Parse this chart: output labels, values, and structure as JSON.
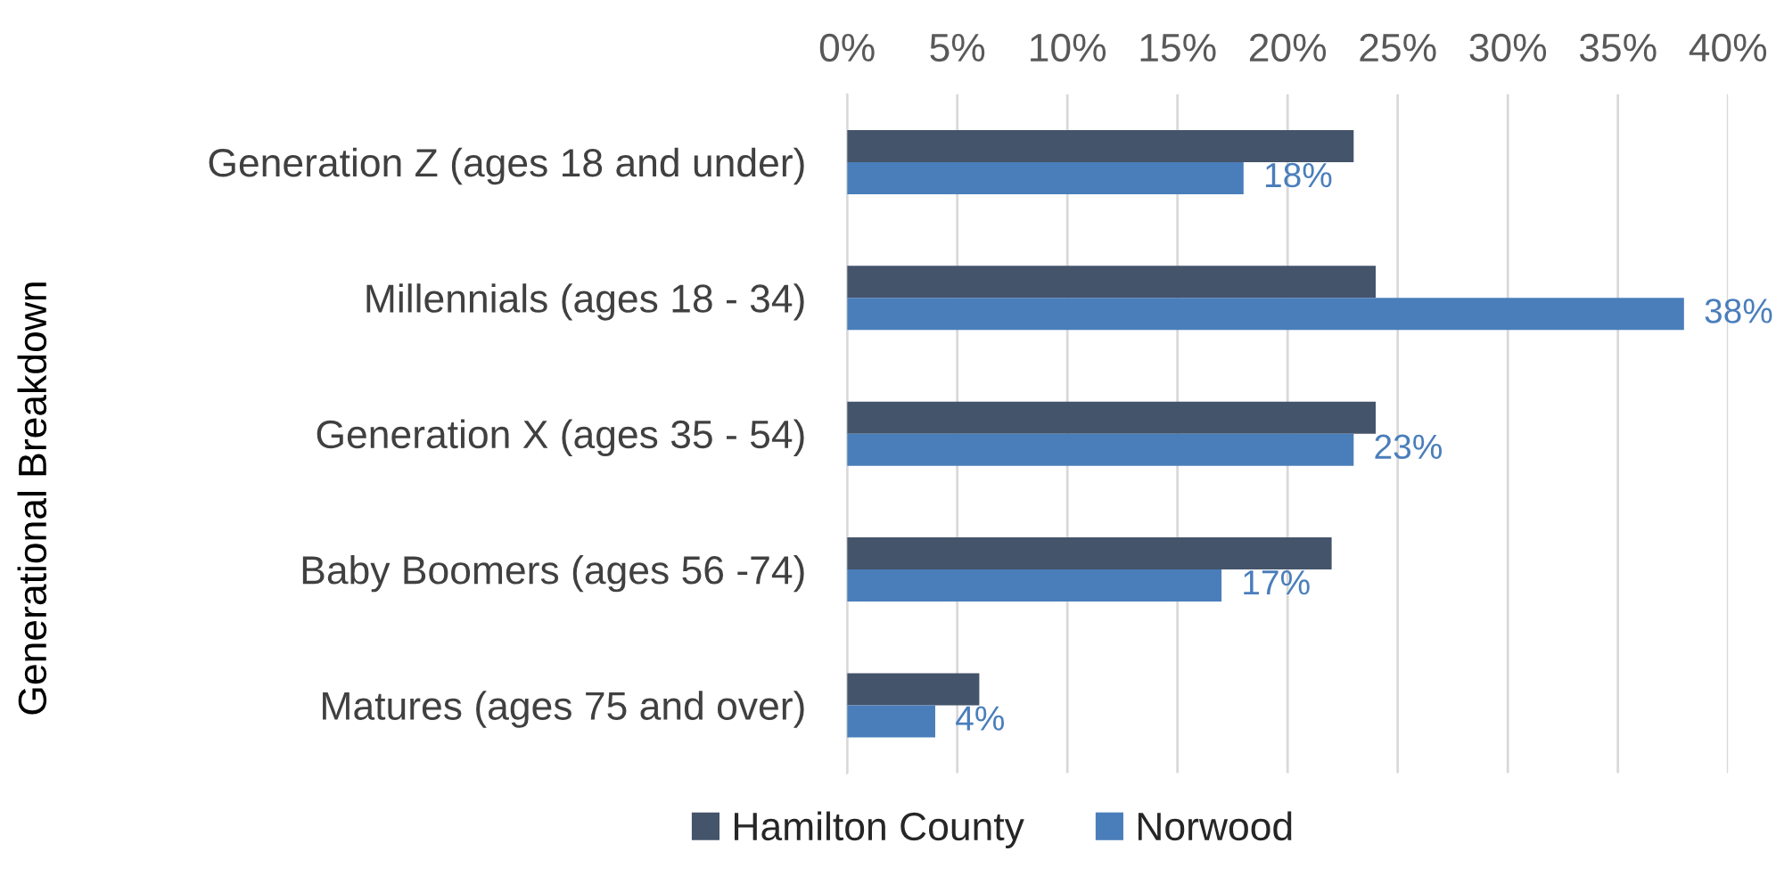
{
  "chart_data": {
    "type": "bar",
    "orientation": "horizontal",
    "ylabel": "Generational Breakdown",
    "categories": [
      "Generation Z (ages 18 and under)",
      "Millennials (ages 18 - 34)",
      "Generation X (ages 35 - 54)",
      "Baby Boomers (ages 56 -74)",
      "Matures (ages 75 and over)"
    ],
    "series": [
      {
        "name": "Hamilton County",
        "color": "#44546a",
        "values": [
          23,
          24,
          24,
          22,
          6
        ]
      },
      {
        "name": "Norwood",
        "color": "#4a7ebb",
        "values": [
          18,
          38,
          23,
          17,
          4
        ],
        "value_labels": [
          "18%",
          "38%",
          "23%",
          "17%",
          "4%"
        ]
      }
    ],
    "xlim": [
      0,
      40
    ],
    "xticks": [
      {
        "value": 0,
        "label": "0%"
      },
      {
        "value": 5,
        "label": "5%"
      },
      {
        "value": 10,
        "label": "10%"
      },
      {
        "value": 15,
        "label": "15%"
      },
      {
        "value": 20,
        "label": "20%"
      },
      {
        "value": 25,
        "label": "25%"
      },
      {
        "value": 30,
        "label": "30%"
      },
      {
        "value": 35,
        "label": "35%"
      },
      {
        "value": 40,
        "label": "40%"
      }
    ],
    "grid": "x",
    "legend": "bottom"
  }
}
